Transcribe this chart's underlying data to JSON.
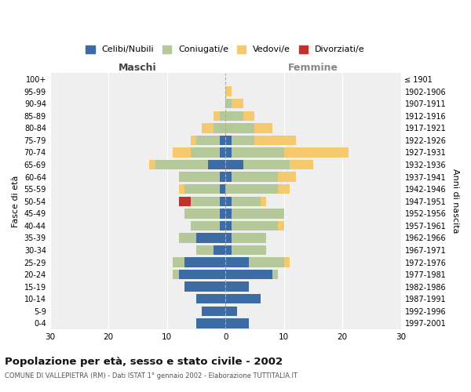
{
  "age_groups": [
    "0-4",
    "5-9",
    "10-14",
    "15-19",
    "20-24",
    "25-29",
    "30-34",
    "35-39",
    "40-44",
    "45-49",
    "50-54",
    "55-59",
    "60-64",
    "65-69",
    "70-74",
    "75-79",
    "80-84",
    "85-89",
    "90-94",
    "95-99",
    "100+"
  ],
  "birth_years": [
    "1997-2001",
    "1992-1996",
    "1987-1991",
    "1982-1986",
    "1977-1981",
    "1972-1976",
    "1967-1971",
    "1962-1966",
    "1957-1961",
    "1952-1956",
    "1947-1951",
    "1942-1946",
    "1937-1941",
    "1932-1936",
    "1927-1931",
    "1922-1926",
    "1917-1921",
    "1912-1916",
    "1907-1911",
    "1902-1906",
    "≤ 1901"
  ],
  "males": {
    "celibi": [
      5,
      4,
      5,
      7,
      8,
      7,
      2,
      5,
      1,
      1,
      1,
      1,
      1,
      3,
      1,
      1,
      0,
      0,
      0,
      0,
      0
    ],
    "coniugati": [
      0,
      0,
      0,
      0,
      1,
      2,
      3,
      3,
      5,
      6,
      5,
      6,
      7,
      9,
      5,
      4,
      2,
      1,
      0,
      0,
      0
    ],
    "vedovi": [
      0,
      0,
      0,
      0,
      0,
      0,
      0,
      0,
      0,
      0,
      0,
      1,
      0,
      1,
      3,
      1,
      2,
      1,
      0,
      0,
      0
    ],
    "divorziati": [
      0,
      0,
      0,
      0,
      0,
      0,
      0,
      0,
      0,
      0,
      2,
      0,
      0,
      0,
      0,
      0,
      0,
      0,
      0,
      0,
      0
    ]
  },
  "females": {
    "nubili": [
      4,
      2,
      6,
      4,
      8,
      4,
      1,
      1,
      1,
      1,
      1,
      0,
      1,
      3,
      1,
      1,
      0,
      0,
      0,
      0,
      0
    ],
    "coniugate": [
      0,
      0,
      0,
      0,
      1,
      6,
      6,
      6,
      8,
      9,
      5,
      9,
      8,
      8,
      9,
      4,
      5,
      3,
      1,
      0,
      0
    ],
    "vedove": [
      0,
      0,
      0,
      0,
      0,
      1,
      0,
      0,
      1,
      0,
      1,
      2,
      3,
      4,
      11,
      7,
      3,
      2,
      2,
      1,
      0
    ],
    "divorziate": [
      0,
      0,
      0,
      0,
      0,
      0,
      0,
      0,
      0,
      0,
      0,
      0,
      0,
      0,
      0,
      0,
      0,
      0,
      0,
      0,
      0
    ]
  },
  "colors": {
    "celibi": "#3d6ca5",
    "coniugati": "#b5c89a",
    "vedovi": "#f5c96d",
    "divorziati": "#c0332c"
  },
  "xlim": 30,
  "title": "Popolazione per età, sesso e stato civile - 2002",
  "subtitle": "COMUNE DI VALLEPIETRA (RM) - Dati ISTAT 1° gennaio 2002 - Elaborazione TUTTITALIA.IT",
  "ylabel_left": "Fasce di età",
  "ylabel_right": "Anni di nascita",
  "xlabel_left": "Maschi",
  "xlabel_right": "Femmine",
  "legend_labels": [
    "Celibi/Nubili",
    "Coniugati/e",
    "Vedovi/e",
    "Divorziati/e"
  ],
  "background_color": "#ffffff",
  "plot_bg_color": "#efefef"
}
